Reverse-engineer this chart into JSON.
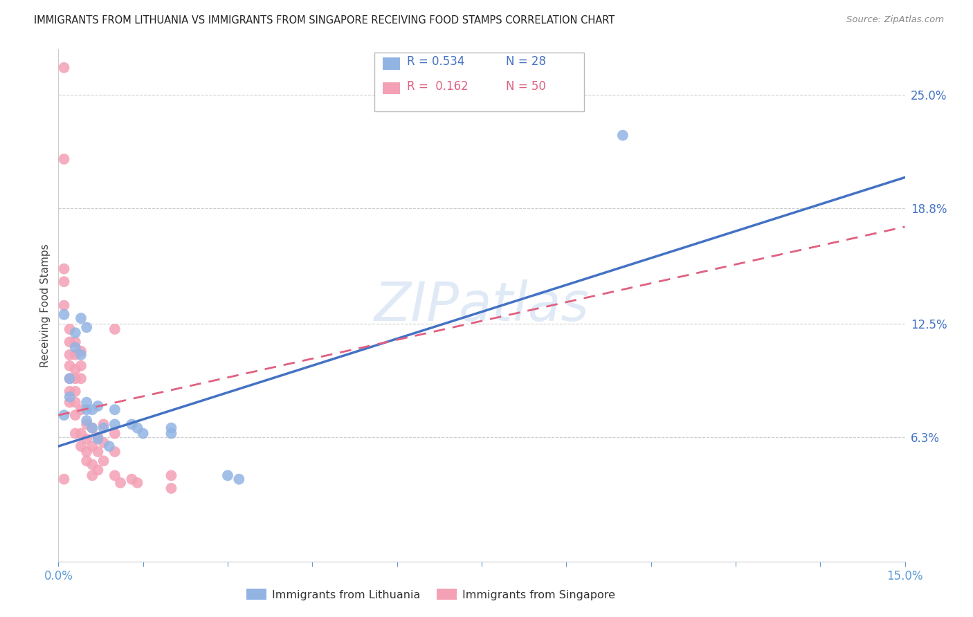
{
  "title": "IMMIGRANTS FROM LITHUANIA VS IMMIGRANTS FROM SINGAPORE RECEIVING FOOD STAMPS CORRELATION CHART",
  "source": "Source: ZipAtlas.com",
  "ylabel": "Receiving Food Stamps",
  "yticks_labels": [
    "6.3%",
    "12.5%",
    "18.8%",
    "25.0%"
  ],
  "ytick_vals": [
    0.063,
    0.125,
    0.188,
    0.25
  ],
  "xmin": 0.0,
  "xmax": 0.15,
  "ymin": -0.005,
  "ymax": 0.275,
  "legend_r1": "R = 0.534",
  "legend_n1": "N = 28",
  "legend_r2": "R =  0.162",
  "legend_n2": "N = 50",
  "watermark": "ZIPatlas",
  "color_blue": "#92b4e3",
  "color_pink": "#f4a0b5",
  "color_line_blue": "#4472c4",
  "color_line_pink": "#e06080",
  "blue_line_y0": 0.058,
  "blue_line_y1": 0.205,
  "pink_line_y0": 0.075,
  "pink_line_y1": 0.178,
  "scatter_blue": [
    [
      0.001,
      0.13
    ],
    [
      0.002,
      0.095
    ],
    [
      0.002,
      0.085
    ],
    [
      0.003,
      0.12
    ],
    [
      0.003,
      0.112
    ],
    [
      0.004,
      0.128
    ],
    [
      0.004,
      0.108
    ],
    [
      0.005,
      0.123
    ],
    [
      0.005,
      0.078
    ],
    [
      0.005,
      0.082
    ],
    [
      0.005,
      0.072
    ],
    [
      0.006,
      0.068
    ],
    [
      0.006,
      0.078
    ],
    [
      0.007,
      0.08
    ],
    [
      0.007,
      0.062
    ],
    [
      0.008,
      0.068
    ],
    [
      0.009,
      0.058
    ],
    [
      0.01,
      0.078
    ],
    [
      0.01,
      0.07
    ],
    [
      0.013,
      0.07
    ],
    [
      0.014,
      0.068
    ],
    [
      0.015,
      0.065
    ],
    [
      0.02,
      0.065
    ],
    [
      0.02,
      0.068
    ],
    [
      0.03,
      0.042
    ],
    [
      0.032,
      0.04
    ],
    [
      0.1,
      0.228
    ],
    [
      0.001,
      0.075
    ]
  ],
  "scatter_pink": [
    [
      0.001,
      0.265
    ],
    [
      0.001,
      0.215
    ],
    [
      0.001,
      0.155
    ],
    [
      0.001,
      0.148
    ],
    [
      0.001,
      0.135
    ],
    [
      0.002,
      0.122
    ],
    [
      0.002,
      0.115
    ],
    [
      0.002,
      0.108
    ],
    [
      0.002,
      0.102
    ],
    [
      0.002,
      0.095
    ],
    [
      0.002,
      0.088
    ],
    [
      0.002,
      0.082
    ],
    [
      0.003,
      0.115
    ],
    [
      0.003,
      0.108
    ],
    [
      0.003,
      0.1
    ],
    [
      0.003,
      0.095
    ],
    [
      0.003,
      0.088
    ],
    [
      0.003,
      0.082
    ],
    [
      0.003,
      0.075
    ],
    [
      0.003,
      0.065
    ],
    [
      0.004,
      0.11
    ],
    [
      0.004,
      0.102
    ],
    [
      0.004,
      0.095
    ],
    [
      0.004,
      0.078
    ],
    [
      0.004,
      0.065
    ],
    [
      0.004,
      0.058
    ],
    [
      0.005,
      0.07
    ],
    [
      0.005,
      0.062
    ],
    [
      0.005,
      0.055
    ],
    [
      0.005,
      0.05
    ],
    [
      0.006,
      0.068
    ],
    [
      0.006,
      0.058
    ],
    [
      0.006,
      0.048
    ],
    [
      0.006,
      0.042
    ],
    [
      0.007,
      0.063
    ],
    [
      0.007,
      0.055
    ],
    [
      0.007,
      0.045
    ],
    [
      0.008,
      0.07
    ],
    [
      0.008,
      0.06
    ],
    [
      0.008,
      0.05
    ],
    [
      0.01,
      0.122
    ],
    [
      0.01,
      0.065
    ],
    [
      0.01,
      0.055
    ],
    [
      0.01,
      0.042
    ],
    [
      0.011,
      0.038
    ],
    [
      0.013,
      0.04
    ],
    [
      0.014,
      0.038
    ],
    [
      0.02,
      0.042
    ],
    [
      0.02,
      0.035
    ],
    [
      0.001,
      0.04
    ]
  ]
}
